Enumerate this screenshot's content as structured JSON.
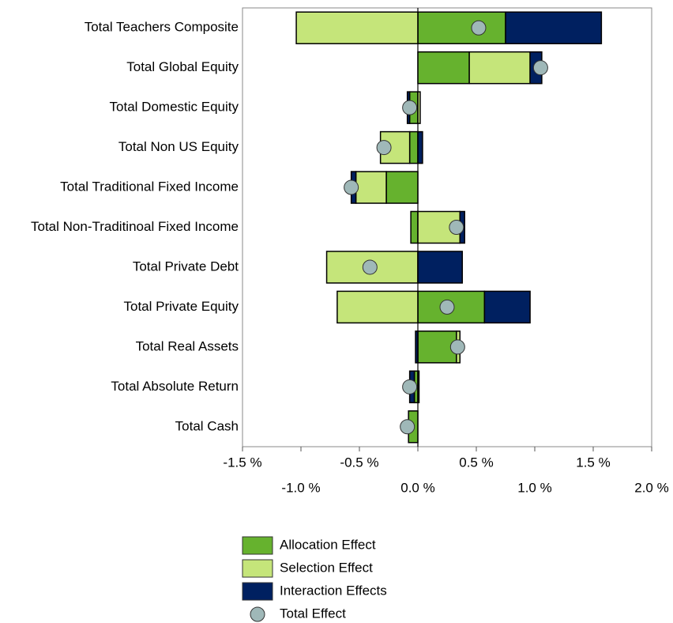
{
  "chart_data": {
    "type": "bar",
    "orientation": "horizontal",
    "stacked": true,
    "categories": [
      "Total Teachers Composite",
      "Total Global Equity",
      "Total Domestic Equity",
      "Total Non US Equity",
      "Total Traditional Fixed Income",
      "Total Non-Traditinoal Fixed Income",
      "Total Private Debt",
      "Total Private Equity",
      "Total Real Assets",
      "Total Absolute Return",
      "Total Cash"
    ],
    "series": [
      {
        "name": "Allocation Effect",
        "color": "#66b22e",
        "values": [
          0.75,
          0.44,
          -0.07,
          -0.07,
          -0.27,
          -0.06,
          0,
          0.57,
          0.33,
          -0.03,
          -0.08
        ]
      },
      {
        "name": "Selection Effect",
        "color": "#c5e57a",
        "values": [
          -1.04,
          0.52,
          0.02,
          -0.25,
          -0.26,
          0.36,
          -0.78,
          -0.69,
          0.03,
          0.01,
          0
        ]
      },
      {
        "name": "Interaction Effects",
        "color": "#002060",
        "values": [
          0.82,
          0.1,
          -0.02,
          0.04,
          -0.04,
          0.04,
          0.38,
          0.39,
          -0.02,
          -0.04,
          0
        ]
      }
    ],
    "markers": {
      "name": "Total Effect",
      "color": "#9fb8b8",
      "values": [
        0.52,
        1.05,
        -0.07,
        -0.29,
        -0.57,
        0.33,
        -0.41,
        0.25,
        0.34,
        -0.07,
        -0.09
      ]
    },
    "xlim": [
      -1.5,
      2.0
    ],
    "xticks": [
      {
        "value": -1.5,
        "label": "-1.5 %"
      },
      {
        "value": -1.0,
        "label": "-1.0 %"
      },
      {
        "value": -0.5,
        "label": "-0.5 %"
      },
      {
        "value": 0.0,
        "label": "0.0 %"
      },
      {
        "value": 0.5,
        "label": "0.5 %"
      },
      {
        "value": 1.0,
        "label": "1.0 %"
      },
      {
        "value": 1.5,
        "label": "1.5 %"
      },
      {
        "value": 2.0,
        "label": "2.0 %"
      }
    ],
    "legend": "bottom"
  }
}
